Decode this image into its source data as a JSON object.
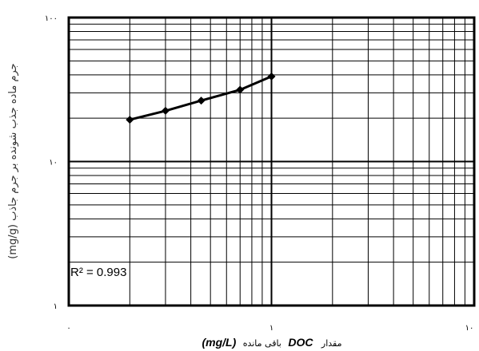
{
  "chart_data": {
    "type": "line",
    "title": "",
    "ylabel": "(mg/g) جرم ماده جذب شونده بر جرم جاذب",
    "xlabel_fa": "مقدار",
    "xlabel_en": "DOC",
    "xlabel_fa2": "باقی مانده",
    "xlabel_unit": "(mg/L)",
    "x_scale": "log",
    "y_scale": "log",
    "xlim": [
      0.1,
      10
    ],
    "ylim": [
      1,
      100
    ],
    "x_tick_labels": [
      "۰",
      "۱",
      "۱۰"
    ],
    "y_tick_labels": [
      "۱",
      "۱۰",
      "۱۰۰"
    ],
    "grid": true,
    "annotation": "R² = 0.993",
    "series": [
      {
        "x": [
          0.2,
          0.3,
          0.45,
          0.7,
          1.0
        ],
        "y": [
          19.5,
          22.5,
          26.5,
          31.5,
          39.0
        ]
      }
    ]
  }
}
